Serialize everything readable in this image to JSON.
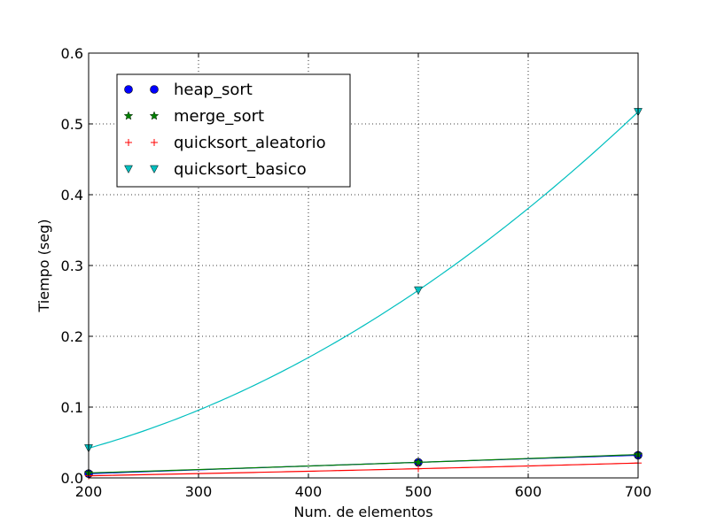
{
  "chart_data": {
    "type": "line",
    "xlabel": "Num. de elementos",
    "ylabel": "Tiempo (seg)",
    "xlim": [
      200,
      700
    ],
    "ylim": [
      0,
      0.6
    ],
    "x_ticks": [
      200,
      300,
      400,
      500,
      600,
      700
    ],
    "y_ticks": [
      0.0,
      0.1,
      0.2,
      0.3,
      0.4,
      0.5,
      0.6
    ],
    "grid": true,
    "legend_position": "top-left",
    "x": [
      200,
      500,
      700
    ],
    "series": [
      {
        "name": "heap_sort",
        "values": [
          0.006,
          0.022,
          0.032
        ],
        "color": "#0000ff",
        "marker": "circle"
      },
      {
        "name": "merge_sort",
        "values": [
          0.007,
          0.022,
          0.033
        ],
        "color": "#008000",
        "marker": "star"
      },
      {
        "name": "quicksort_aleatorio",
        "values": [
          0.003,
          0.013,
          0.021
        ],
        "color": "#ff0000",
        "marker": "plus"
      },
      {
        "name": "quicksort_basico",
        "values": [
          0.042,
          0.265,
          0.517
        ],
        "color": "#00bfbf",
        "marker": "triangle-down"
      }
    ]
  }
}
